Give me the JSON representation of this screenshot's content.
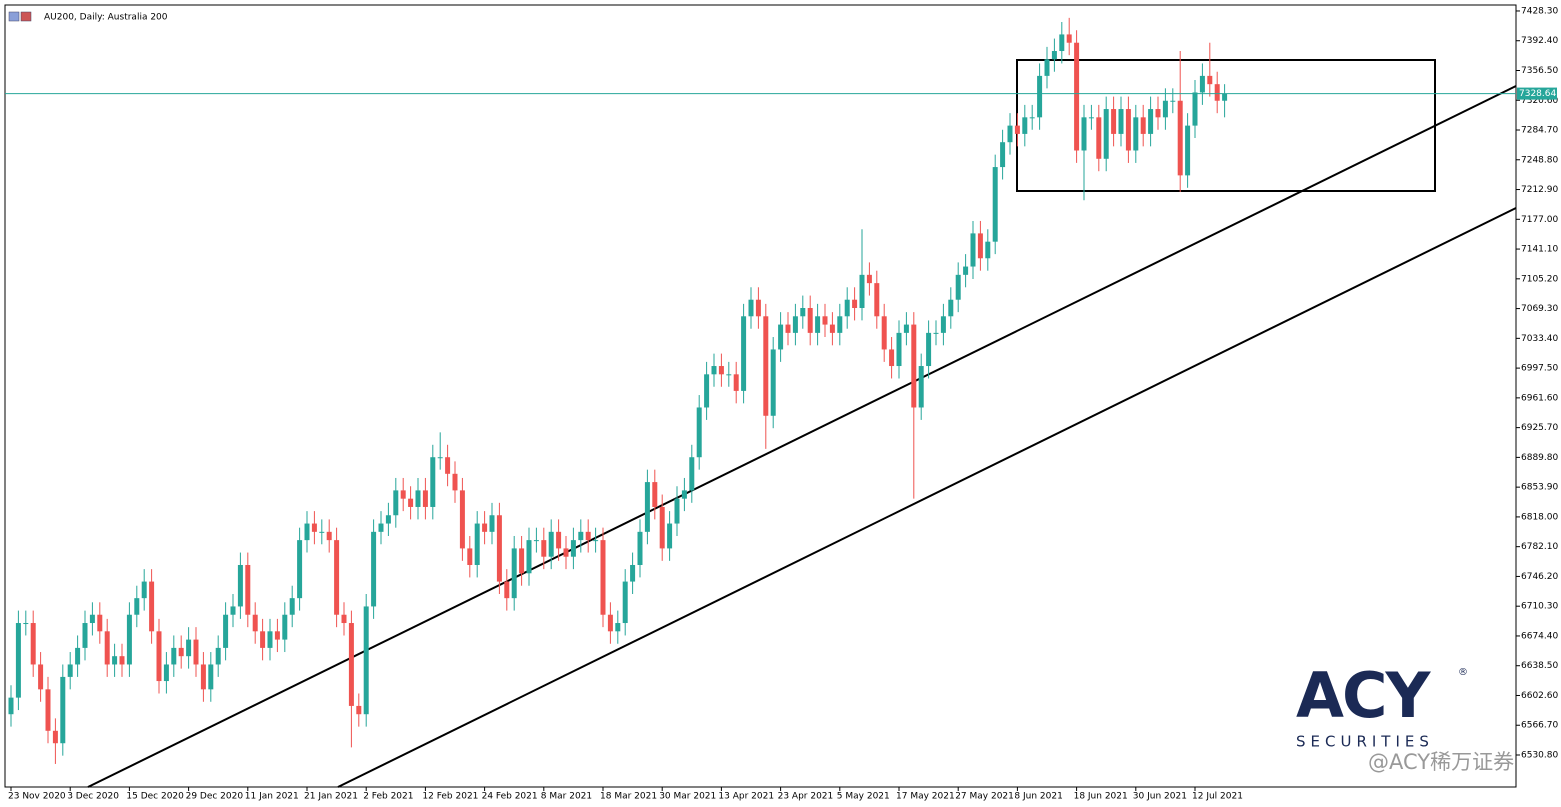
{
  "chart_data": {
    "type": "candlestick",
    "title": "AU200, Daily:  Australia 200",
    "categories": [
      "23 Nov 2020",
      null,
      null,
      null,
      null,
      null,
      null,
      null,
      "3 Dec 2020",
      null,
      null,
      null,
      null,
      null,
      null,
      null,
      "15 Dec 2020",
      null,
      null,
      null,
      null,
      null,
      null,
      null,
      "29 Dec 2020",
      null,
      null,
      null,
      null,
      null,
      null,
      null,
      "11 Jan 2021",
      null,
      null,
      null,
      null,
      null,
      null,
      null,
      "21 Jan 2021",
      null,
      null,
      null,
      null,
      null,
      null,
      null,
      "2 Feb 2021",
      null,
      null,
      null,
      null,
      null,
      null,
      null,
      "12 Feb 2021",
      null,
      null,
      null,
      null,
      null,
      null,
      null,
      "24 Feb 2021",
      null,
      null,
      null,
      null,
      null,
      null,
      null,
      "8 Mar 2021",
      null,
      null,
      null,
      null,
      null,
      null,
      null,
      "18 Mar 2021",
      null,
      null,
      null,
      null,
      null,
      null,
      null,
      "30 Mar 2021",
      null,
      null,
      null,
      null,
      null,
      null,
      null,
      "13 Apr 2021",
      null,
      null,
      null,
      null,
      null,
      null,
      null,
      "23 Apr 2021",
      null,
      null,
      null,
      null,
      null,
      null,
      null,
      "5 May 2021",
      null,
      null,
      null,
      null,
      null,
      null,
      null,
      "17 May 2021",
      null,
      null,
      null,
      null,
      null,
      null,
      null,
      "27 May 2021",
      null,
      null,
      null,
      null,
      null,
      null,
      null,
      "8 Jun 2021",
      null,
      null,
      null,
      null,
      null,
      null,
      null,
      "18 Jun 2021",
      null,
      null,
      null,
      null,
      null,
      null,
      null,
      "30 Jun 2021",
      null,
      null,
      null,
      null,
      null,
      null,
      null,
      "12 Jul 2021",
      null,
      null,
      null,
      null
    ],
    "open": [
      6580,
      6600,
      6690,
      6690,
      6640,
      6610,
      6560,
      6545,
      6625,
      6640,
      6660,
      6690,
      6700,
      6680,
      6640,
      6650,
      6640,
      6700,
      6720,
      6740,
      6680,
      6620,
      6640,
      6660,
      6650,
      6670,
      6640,
      6610,
      6640,
      6660,
      6700,
      6710,
      6760,
      6700,
      6680,
      6660,
      6680,
      6670,
      6700,
      6720,
      6790,
      6810,
      6800,
      6800,
      6790,
      6700,
      6690,
      6590,
      6580,
      6710,
      6800,
      6810,
      6820,
      6850,
      6840,
      6830,
      6850,
      6830,
      6890,
      6890,
      6870,
      6850,
      6780,
      6760,
      6810,
      6800,
      6820,
      6740,
      6720,
      6780,
      6750,
      6790,
      6790,
      6770,
      6800,
      6780,
      6770,
      6790,
      6800,
      6790,
      6790,
      6700,
      6680,
      6690,
      6740,
      6760,
      6800,
      6860,
      6830,
      6780,
      6810,
      6840,
      6850,
      6890,
      6950,
      6990,
      7000,
      6990,
      6990,
      6970,
      7060,
      7080,
      7060,
      6940,
      7020,
      7050,
      7040,
      7060,
      7070,
      7040,
      7060,
      7050,
      7040,
      7060,
      7080,
      7070,
      7110,
      7100,
      7060,
      7020,
      7000,
      7040,
      7050,
      6950,
      7000,
      7040,
      7040,
      7060,
      7080,
      7110,
      7120,
      7160,
      7130,
      7150,
      7240,
      7270,
      7290,
      7280,
      7300,
      7300,
      7350,
      7370,
      7380,
      7400,
      7390,
      7260,
      7300,
      7300,
      7250,
      7310,
      7280,
      7310,
      7260,
      7300,
      7280,
      7310,
      7300,
      7320,
      7320,
      7230,
      7290,
      7330,
      7350,
      7340,
      7320
    ],
    "high": [
      6615,
      6705,
      6705,
      6705,
      6655,
      6625,
      6575,
      6640,
      6655,
      6675,
      6705,
      6715,
      6715,
      6695,
      6665,
      6665,
      6715,
      6735,
      6755,
      6755,
      6695,
      6655,
      6675,
      6675,
      6685,
      6685,
      6655,
      6655,
      6675,
      6715,
      6725,
      6775,
      6775,
      6715,
      6695,
      6695,
      6695,
      6715,
      6735,
      6805,
      6825,
      6825,
      6815,
      6815,
      6805,
      6715,
      6705,
      6605,
      6725,
      6815,
      6825,
      6835,
      6865,
      6865,
      6855,
      6865,
      6865,
      6905,
      6920,
      6905,
      6885,
      6865,
      6795,
      6825,
      6825,
      6835,
      6835,
      6755,
      6795,
      6795,
      6805,
      6805,
      6805,
      6815,
      6815,
      6795,
      6805,
      6815,
      6815,
      6805,
      6805,
      6715,
      6705,
      6755,
      6775,
      6815,
      6875,
      6875,
      6845,
      6825,
      6855,
      6865,
      6905,
      6965,
      7005,
      7015,
      7015,
      7005,
      7005,
      7075,
      7095,
      7095,
      7075,
      7035,
      7065,
      7065,
      7075,
      7085,
      7085,
      7075,
      7075,
      7065,
      7075,
      7095,
      7095,
      7165,
      7125,
      7115,
      7075,
      7035,
      7055,
      7065,
      7065,
      7015,
      7055,
      7055,
      7075,
      7095,
      7125,
      7135,
      7175,
      7175,
      7165,
      7255,
      7285,
      7305,
      7305,
      7315,
      7315,
      7365,
      7385,
      7395,
      7415,
      7420,
      7405,
      7315,
      7315,
      7315,
      7325,
      7325,
      7325,
      7325,
      7315,
      7315,
      7325,
      7325,
      7335,
      7335,
      7380,
      7305,
      7345,
      7365,
      7390,
      7355,
      7340
    ],
    "low": [
      6565,
      6585,
      6675,
      6625,
      6595,
      6545,
      6520,
      6530,
      6610,
      6625,
      6645,
      6675,
      6665,
      6625,
      6625,
      6625,
      6625,
      6685,
      6705,
      6665,
      6605,
      6605,
      6625,
      6635,
      6635,
      6625,
      6595,
      6595,
      6625,
      6645,
      6685,
      6695,
      6685,
      6665,
      6645,
      6645,
      6655,
      6655,
      6685,
      6705,
      6775,
      6785,
      6785,
      6775,
      6685,
      6675,
      6540,
      6565,
      6565,
      6695,
      6785,
      6795,
      6805,
      6825,
      6815,
      6815,
      6815,
      6815,
      6875,
      6855,
      6835,
      6765,
      6745,
      6745,
      6785,
      6785,
      6725,
      6705,
      6705,
      6735,
      6735,
      6775,
      6755,
      6755,
      6765,
      6755,
      6755,
      6775,
      6775,
      6775,
      6685,
      6665,
      6665,
      6675,
      6725,
      6745,
      6785,
      6815,
      6765,
      6765,
      6795,
      6825,
      6835,
      6875,
      6935,
      6975,
      6975,
      6975,
      6955,
      6955,
      7045,
      7045,
      6900,
      6925,
      7005,
      7025,
      7025,
      7045,
      7025,
      7025,
      7035,
      7025,
      7025,
      7045,
      7055,
      7055,
      7085,
      7045,
      7005,
      6985,
      6985,
      7025,
      6840,
      6935,
      6985,
      7025,
      7025,
      7045,
      7065,
      7095,
      7105,
      7115,
      7115,
      7135,
      7225,
      7255,
      7265,
      7265,
      7285,
      7285,
      7335,
      7355,
      7365,
      7375,
      7245,
      7200,
      7285,
      7235,
      7235,
      7265,
      7265,
      7245,
      7245,
      7265,
      7265,
      7285,
      7285,
      7305,
      7210,
      7215,
      7275,
      7315,
      7325,
      7305,
      7300
    ],
    "close": [
      6600,
      6690,
      6690,
      6640,
      6610,
      6560,
      6545,
      6625,
      6640,
      6660,
      6690,
      6700,
      6680,
      6640,
      6650,
      6640,
      6700,
      6720,
      6740,
      6680,
      6620,
      6640,
      6660,
      6650,
      6670,
      6640,
      6610,
      6640,
      6660,
      6700,
      6710,
      6760,
      6700,
      6680,
      6660,
      6680,
      6670,
      6700,
      6720,
      6790,
      6810,
      6800,
      6800,
      6790,
      6700,
      6690,
      6590,
      6580,
      6710,
      6800,
      6810,
      6820,
      6850,
      6840,
      6830,
      6850,
      6830,
      6890,
      6890,
      6870,
      6850,
      6780,
      6760,
      6810,
      6800,
      6820,
      6740,
      6720,
      6780,
      6750,
      6790,
      6790,
      6770,
      6800,
      6780,
      6770,
      6790,
      6800,
      6790,
      6790,
      6700,
      6680,
      6690,
      6740,
      6760,
      6800,
      6860,
      6830,
      6780,
      6810,
      6840,
      6850,
      6890,
      6950,
      6990,
      7000,
      6990,
      6990,
      6970,
      7060,
      7080,
      7060,
      6940,
      7020,
      7050,
      7040,
      7060,
      7070,
      7040,
      7060,
      7050,
      7040,
      7060,
      7080,
      7070,
      7110,
      7100,
      7060,
      7020,
      7000,
      7040,
      7050,
      6950,
      7000,
      7040,
      7040,
      7060,
      7080,
      7110,
      7120,
      7160,
      7130,
      7150,
      7240,
      7270,
      7290,
      7280,
      7300,
      7300,
      7350,
      7370,
      7380,
      7400,
      7390,
      7260,
      7300,
      7300,
      7250,
      7310,
      7280,
      7310,
      7260,
      7300,
      7280,
      7310,
      7300,
      7320,
      7320,
      7230,
      7290,
      7330,
      7350,
      7340,
      7320,
      7328.64
    ],
    "up_color": "#26a69a",
    "down_color": "#ef5350",
    "ylim": [
      6492.2,
      7435.5
    ],
    "yticks": [
      {
        "value": 7428.3,
        "label": "7428.30"
      },
      {
        "value": 7392.4,
        "label": "7392.40"
      },
      {
        "value": 7356.5,
        "label": "7356.50"
      },
      {
        "value": 7320.6,
        "label": "7320.60"
      },
      {
        "value": 7284.7,
        "label": "7284.70"
      },
      {
        "value": 7248.8,
        "label": "7248.80"
      },
      {
        "value": 7212.9,
        "label": "7212.90"
      },
      {
        "value": 7177.0,
        "label": "7177.00"
      },
      {
        "value": 7141.1,
        "label": "7141.10"
      },
      {
        "value": 7105.2,
        "label": "7105.20"
      },
      {
        "value": 7069.3,
        "label": "7069.30"
      },
      {
        "value": 7033.4,
        "label": "7033.40"
      },
      {
        "value": 6997.5,
        "label": "6997.50"
      },
      {
        "value": 6961.6,
        "label": "6961.60"
      },
      {
        "value": 6925.7,
        "label": "6925.70"
      },
      {
        "value": 6889.8,
        "label": "6889.80"
      },
      {
        "value": 6853.9,
        "label": "6853.90"
      },
      {
        "value": 6818.0,
        "label": "6818.00"
      },
      {
        "value": 6782.1,
        "label": "6782.10"
      },
      {
        "value": 6746.2,
        "label": "6746.20"
      },
      {
        "value": 6710.3,
        "label": "6710.30"
      },
      {
        "value": 6674.4,
        "label": "6674.40"
      },
      {
        "value": 6638.5,
        "label": "6638.50"
      },
      {
        "value": 6602.6,
        "label": "6602.60"
      },
      {
        "value": 6566.7,
        "label": "6566.70"
      },
      {
        "value": 6530.8,
        "label": "6530.80"
      }
    ],
    "current_price": 7328.64,
    "current_price_color": "#26a69a"
  },
  "logo": {
    "mark": "ACY",
    "tagline": "SECURITIES",
    "registered": "®"
  },
  "watermark": "@ACY稀万证券"
}
